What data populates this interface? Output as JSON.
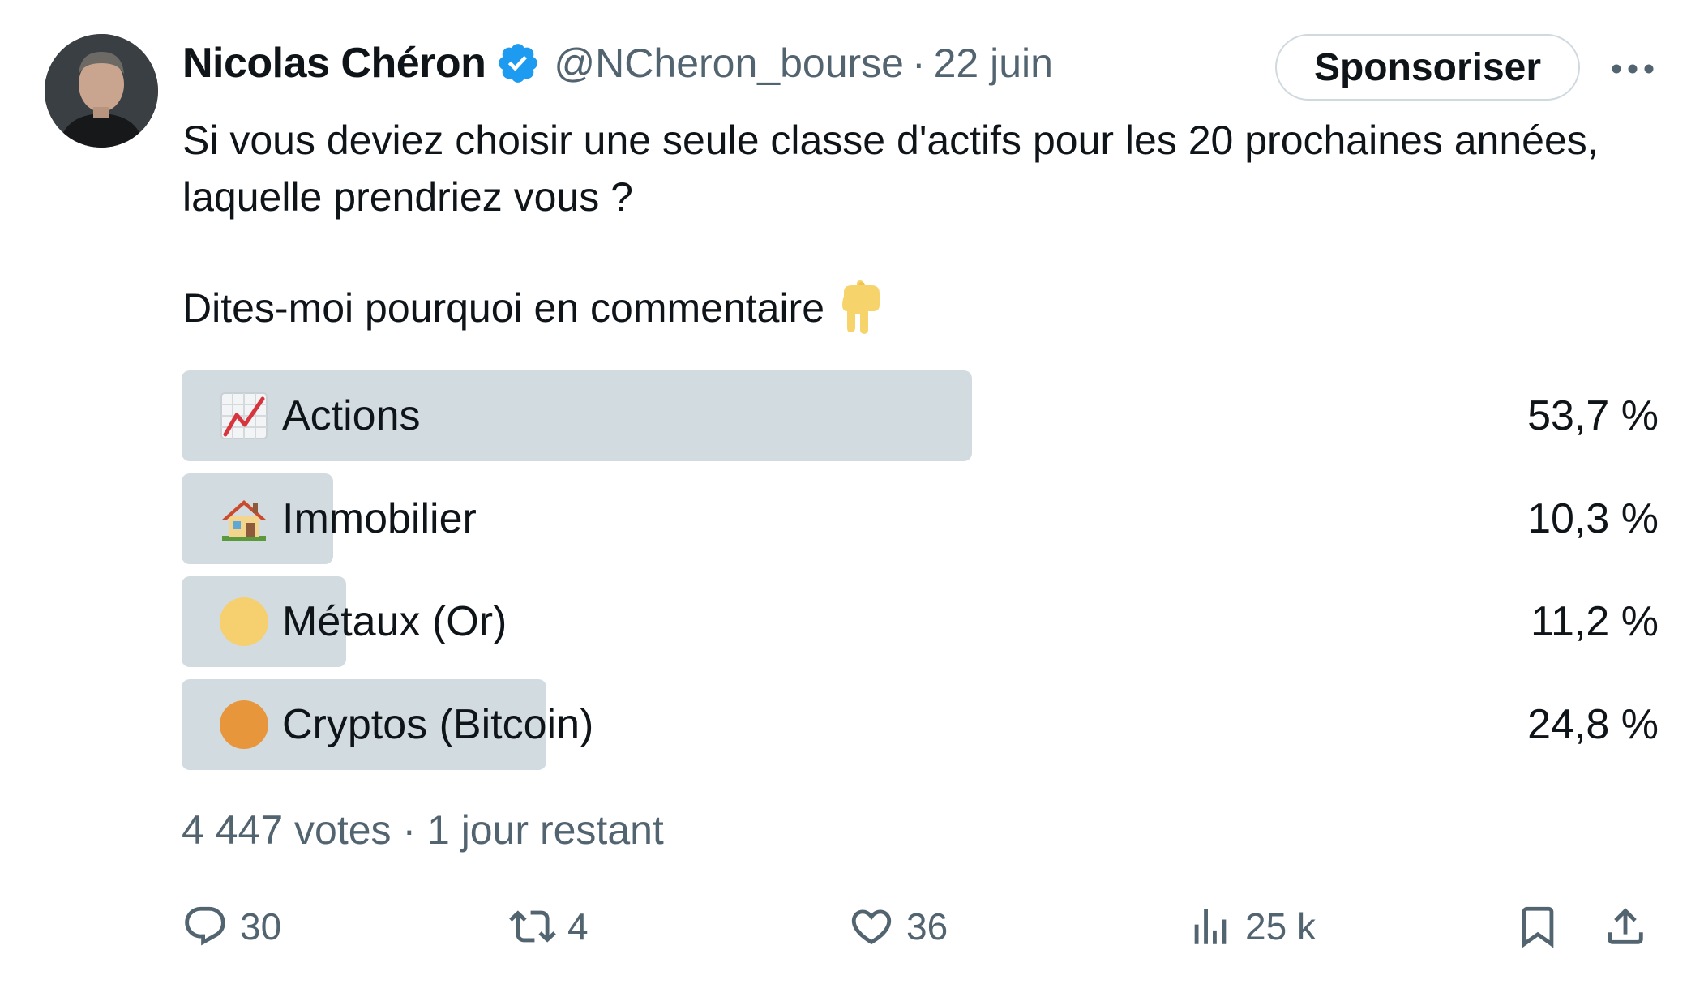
{
  "tweet": {
    "author_name": "Nicolas Chéron",
    "handle": "@NCheron_bourse",
    "separator": "·",
    "date": "22 juin",
    "sponsor_label": "Sponsoriser",
    "text_line1": "Si vous deviez choisir une seule classe d'actifs pour les 20 prochaines années, laquelle prendriez vous ?",
    "text_line2": "Dites-moi pourquoi en commentaire"
  },
  "poll": {
    "options": [
      {
        "label": "Actions",
        "percent_text": "53,7 %",
        "fraction": 0.537,
        "icon": "chart-increasing-icon",
        "color": "#cfd9de"
      },
      {
        "label": "Immobilier",
        "percent_text": "10,3 %",
        "fraction": 0.103,
        "icon": "house-icon",
        "color": "#cfd9de"
      },
      {
        "label": "Métaux (Or)",
        "percent_text": "11,2 %",
        "fraction": 0.112,
        "icon": "yellow-circle-icon",
        "color": "#f6cf6f"
      },
      {
        "label": "Cryptos (Bitcoin)",
        "percent_text": "24,8 %",
        "fraction": 0.248,
        "icon": "orange-circle-icon",
        "color": "#e8963b"
      }
    ],
    "votes": "4 447 votes",
    "separator": "·",
    "remaining": "1 jour restant"
  },
  "actions": {
    "replies": "30",
    "retweets": "4",
    "likes": "36",
    "views": "25 k"
  },
  "colors": {
    "verified": "#1d9bf0",
    "secondary_text": "#536471",
    "bar": "#cfd9de"
  }
}
